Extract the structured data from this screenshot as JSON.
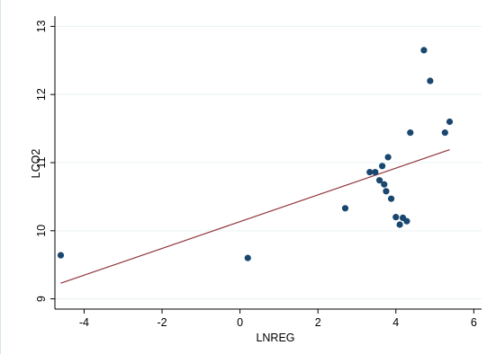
{
  "chart_data": {
    "type": "scatter",
    "title": "",
    "xlabel": "LNREG",
    "ylabel": "LCO2",
    "xlim": [
      -4.75,
      6.2
    ],
    "ylim": [
      8.85,
      13.15
    ],
    "xticks": [
      -4,
      -2,
      0,
      2,
      4,
      6
    ],
    "yticks": [
      9,
      10,
      11,
      12,
      13
    ],
    "grid": "horizontal",
    "legend": "none",
    "colors": {
      "points": "#1a476f",
      "fit_line": "#90353b",
      "grid": "#eaf2f3",
      "axis": "#000000",
      "frame": "#d7e4ea"
    },
    "points": [
      {
        "x": -4.6,
        "y": 9.64
      },
      {
        "x": 0.2,
        "y": 9.6
      },
      {
        "x": 2.7,
        "y": 10.33
      },
      {
        "x": 3.33,
        "y": 10.86
      },
      {
        "x": 3.47,
        "y": 10.86
      },
      {
        "x": 3.58,
        "y": 10.74
      },
      {
        "x": 3.65,
        "y": 10.95
      },
      {
        "x": 3.7,
        "y": 10.68
      },
      {
        "x": 3.75,
        "y": 10.58
      },
      {
        "x": 3.8,
        "y": 11.08
      },
      {
        "x": 3.88,
        "y": 10.47
      },
      {
        "x": 4.0,
        "y": 10.2
      },
      {
        "x": 4.1,
        "y": 10.09
      },
      {
        "x": 4.18,
        "y": 10.19
      },
      {
        "x": 4.28,
        "y": 10.14
      },
      {
        "x": 4.37,
        "y": 11.44
      },
      {
        "x": 4.72,
        "y": 12.65
      },
      {
        "x": 4.88,
        "y": 12.2
      },
      {
        "x": 5.26,
        "y": 11.44
      },
      {
        "x": 5.38,
        "y": 11.6
      }
    ],
    "fit_line": {
      "x": [
        -4.6,
        5.38
      ],
      "y": [
        9.23,
        11.19
      ]
    }
  }
}
